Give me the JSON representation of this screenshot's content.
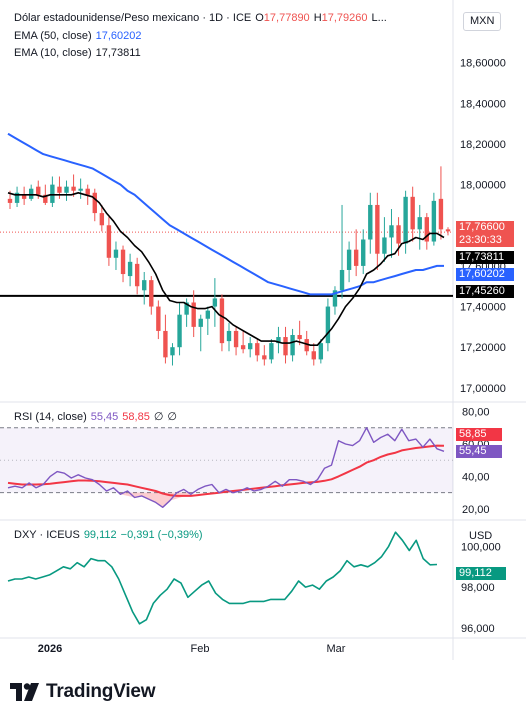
{
  "header": {
    "title": "Dólar estadounidense/Peso mexicano · 1D · ICE",
    "o_label": "O",
    "o_value": "17,77890",
    "h_label": "H",
    "h_value": "17,79260",
    "l_label": "L..."
  },
  "ema50": {
    "label": "EMA (50, close)",
    "value": "17,60202"
  },
  "ema10": {
    "label": "EMA (10, close)",
    "value": "17,73811"
  },
  "rsi_legend": {
    "label": "RSI (14, close)",
    "v1": "55,45",
    "v2": "58,85",
    "v3": "∅",
    "v4": "∅"
  },
  "dxy_legend": {
    "label": "DXY · ICEUS",
    "value": "99,112",
    "change": "−0,391 (−0,39%)"
  },
  "currency": "MXN",
  "usd": "USD",
  "price_tags": {
    "last": "17,76600",
    "countdown": "23:30:33",
    "ema10": "17,73811",
    "ema50": "17,60202",
    "hline": "17,45260",
    "rsi_a": "58,85",
    "rsi_b": "55,45",
    "dxy": "99,112"
  },
  "brand": "TradingView",
  "colors": {
    "up": "#26a69a",
    "down": "#ef5350",
    "ema50": "#2962ff",
    "ema10": "#000000",
    "rsi": "#7e57c2",
    "rsi_ma": "#f23645",
    "dxy": "#089981",
    "hline": "#000000"
  },
  "chart_data": [
    {
      "type": "candlestick",
      "title": "Dólar estadounidense/Peso mexicano · 1D · ICE",
      "ylabel": "MXN",
      "ylim": [
        16.95,
        18.82
      ],
      "yticks": [
        "17,00000",
        "17,20000",
        "17,40000",
        "17,60000",
        "17,80000",
        "18,00000",
        "18,20000",
        "18,40000",
        "18,60000"
      ],
      "x_ticks": [
        "2026",
        "Feb",
        "Mar"
      ],
      "ohlc": [
        [
          17.93,
          17.97,
          17.88,
          17.91
        ],
        [
          17.91,
          17.99,
          17.89,
          17.96
        ],
        [
          17.95,
          17.99,
          17.9,
          17.93
        ],
        [
          17.93,
          18.0,
          17.92,
          17.98
        ],
        [
          17.99,
          18.02,
          17.93,
          17.95
        ],
        [
          17.95,
          18.0,
          17.9,
          17.91
        ],
        [
          17.91,
          18.04,
          17.89,
          18.0
        ],
        [
          17.99,
          18.04,
          17.93,
          17.96
        ],
        [
          17.96,
          18.02,
          17.92,
          17.99
        ],
        [
          17.99,
          18.05,
          17.94,
          17.97
        ],
        [
          17.97,
          18.03,
          17.93,
          17.98
        ],
        [
          17.98,
          18.0,
          17.9,
          17.95
        ],
        [
          17.96,
          17.98,
          17.82,
          17.86
        ],
        [
          17.86,
          17.9,
          17.77,
          17.8
        ],
        [
          17.8,
          17.84,
          17.6,
          17.64
        ],
        [
          17.64,
          17.72,
          17.58,
          17.68
        ],
        [
          17.68,
          17.7,
          17.52,
          17.56
        ],
        [
          17.55,
          17.66,
          17.5,
          17.62
        ],
        [
          17.61,
          17.64,
          17.46,
          17.5
        ],
        [
          17.48,
          17.57,
          17.41,
          17.53
        ],
        [
          17.53,
          17.55,
          17.36,
          17.4
        ],
        [
          17.4,
          17.43,
          17.24,
          17.28
        ],
        [
          17.28,
          17.36,
          17.12,
          17.15
        ],
        [
          17.16,
          17.22,
          17.11,
          17.2
        ],
        [
          17.2,
          17.42,
          17.16,
          17.36
        ],
        [
          17.36,
          17.44,
          17.3,
          17.42
        ],
        [
          17.42,
          17.48,
          17.25,
          17.3
        ],
        [
          17.3,
          17.36,
          17.18,
          17.34
        ],
        [
          17.34,
          17.4,
          17.26,
          17.38
        ],
        [
          17.4,
          17.54,
          17.3,
          17.44
        ],
        [
          17.44,
          17.46,
          17.18,
          17.22
        ],
        [
          17.23,
          17.32,
          17.18,
          17.28
        ],
        [
          17.28,
          17.3,
          17.16,
          17.2
        ],
        [
          17.21,
          17.28,
          17.17,
          17.19
        ],
        [
          17.19,
          17.25,
          17.15,
          17.22
        ],
        [
          17.22,
          17.24,
          17.13,
          17.16
        ],
        [
          17.16,
          17.21,
          17.11,
          17.14
        ],
        [
          17.14,
          17.24,
          17.12,
          17.22
        ],
        [
          17.22,
          17.3,
          17.17,
          17.25
        ],
        [
          17.25,
          17.3,
          17.12,
          17.16
        ],
        [
          17.16,
          17.29,
          17.13,
          17.26
        ],
        [
          17.26,
          17.33,
          17.21,
          17.24
        ],
        [
          17.24,
          17.28,
          17.16,
          17.18
        ],
        [
          17.18,
          17.22,
          17.11,
          17.14
        ],
        [
          17.14,
          17.24,
          17.12,
          17.22
        ],
        [
          17.22,
          17.44,
          17.18,
          17.4
        ],
        [
          17.4,
          17.5,
          17.36,
          17.48
        ],
        [
          17.48,
          17.9,
          17.44,
          17.58
        ],
        [
          17.58,
          17.72,
          17.52,
          17.68
        ],
        [
          17.68,
          17.78,
          17.55,
          17.6
        ],
        [
          17.6,
          17.78,
          17.56,
          17.73
        ],
        [
          17.73,
          17.96,
          17.66,
          17.9
        ],
        [
          17.9,
          17.96,
          17.58,
          17.66
        ],
        [
          17.66,
          17.84,
          17.62,
          17.74
        ],
        [
          17.74,
          17.88,
          17.64,
          17.8
        ],
        [
          17.8,
          17.84,
          17.65,
          17.71
        ],
        [
          17.71,
          17.97,
          17.66,
          17.94
        ],
        [
          17.94,
          17.99,
          17.72,
          17.78
        ],
        [
          17.78,
          17.9,
          17.68,
          17.84
        ],
        [
          17.84,
          17.86,
          17.68,
          17.72
        ],
        [
          17.72,
          17.96,
          17.7,
          17.92
        ],
        [
          17.93,
          18.09,
          17.73,
          17.78
        ],
        [
          17.78,
          17.79,
          17.75,
          17.77
        ]
      ],
      "ema10": [
        17.96,
        17.95,
        17.95,
        17.95,
        17.95,
        17.94,
        17.95,
        17.95,
        17.95,
        17.95,
        17.96,
        17.95,
        17.94,
        17.91,
        17.86,
        17.82,
        17.77,
        17.74,
        17.7,
        17.67,
        17.62,
        17.56,
        17.48,
        17.43,
        17.42,
        17.42,
        17.4,
        17.39,
        17.39,
        17.4,
        17.36,
        17.34,
        17.31,
        17.29,
        17.27,
        17.25,
        17.23,
        17.23,
        17.23,
        17.22,
        17.22,
        17.23,
        17.22,
        17.21,
        17.21,
        17.25,
        17.29,
        17.34,
        17.4,
        17.44,
        17.49,
        17.56,
        17.58,
        17.61,
        17.65,
        17.66,
        17.71,
        17.72,
        17.74,
        17.73,
        17.76,
        17.76,
        17.74
      ],
      "ema50": [
        18.25,
        18.23,
        18.21,
        18.19,
        18.17,
        18.15,
        18.14,
        18.13,
        18.12,
        18.11,
        18.1,
        18.09,
        18.08,
        18.06,
        18.04,
        18.02,
        18.0,
        17.97,
        17.95,
        17.92,
        17.89,
        17.86,
        17.83,
        17.8,
        17.78,
        17.76,
        17.74,
        17.72,
        17.7,
        17.68,
        17.66,
        17.64,
        17.62,
        17.6,
        17.58,
        17.56,
        17.54,
        17.52,
        17.51,
        17.5,
        17.49,
        17.48,
        17.47,
        17.46,
        17.46,
        17.46,
        17.46,
        17.47,
        17.48,
        17.49,
        17.5,
        17.52,
        17.52,
        17.53,
        17.54,
        17.55,
        17.56,
        17.57,
        17.58,
        17.58,
        17.59,
        17.6,
        17.6
      ],
      "hline": 17.4526,
      "last": 17.766
    },
    {
      "type": "line",
      "title": "RSI (14, close)",
      "ylim": [
        15,
        84
      ],
      "yticks": [
        "20,00",
        "40,00",
        "60,00",
        "80,00"
      ],
      "bands": [
        30,
        70
      ],
      "series": [
        {
          "name": "RSI",
          "values": [
            33,
            34,
            33,
            36,
            33,
            35,
            40,
            43,
            42,
            39,
            41,
            39,
            38,
            35,
            31,
            33,
            29,
            31,
            27,
            28,
            26,
            24,
            21,
            25,
            30,
            32,
            29,
            32,
            34,
            35,
            30,
            32,
            30,
            31,
            33,
            31,
            32,
            34,
            37,
            34,
            38,
            38,
            37,
            35,
            38,
            45,
            47,
            62,
            60,
            59,
            62,
            70,
            61,
            64,
            66,
            62,
            69,
            62,
            63,
            58,
            63,
            57,
            55.45
          ]
        },
        {
          "name": "MA",
          "values": [
            36,
            35.5,
            35,
            35,
            35,
            35.2,
            35.5,
            36,
            36.5,
            37,
            37.5,
            37.5,
            37.3,
            37,
            36.5,
            36,
            35.5,
            35,
            34,
            33,
            32,
            31,
            29.5,
            28.5,
            28,
            28,
            28,
            28.5,
            29,
            29.5,
            30,
            30.5,
            31,
            31.5,
            32,
            32.5,
            33,
            33.5,
            34,
            34.5,
            35,
            35.5,
            36,
            36.3,
            36.6,
            37.3,
            38.2,
            40,
            42,
            44,
            46,
            48.5,
            50,
            52,
            53.5,
            54.5,
            56,
            56.8,
            57.5,
            58,
            58.5,
            59,
            58.85
          ]
        }
      ]
    },
    {
      "type": "line",
      "title": "DXY · ICEUS",
      "ylabel": "USD",
      "ylim": [
        95.6,
        101.2
      ],
      "yticks": [
        "96,000",
        "98,000",
        "100,000"
      ],
      "series": [
        {
          "name": "DXY",
          "values": [
            98.3,
            98.4,
            98.4,
            98.5,
            98.4,
            98.5,
            98.6,
            98.8,
            99.0,
            98.9,
            99.2,
            99.0,
            99.4,
            99.3,
            99.3,
            99.0,
            98.4,
            97.6,
            96.8,
            96.2,
            96.4,
            97.2,
            97.6,
            97.9,
            98.4,
            98.2,
            97.5,
            97.8,
            98.1,
            98.3,
            97.7,
            97.4,
            97.2,
            97.2,
            97.2,
            97.3,
            97.3,
            97.3,
            97.4,
            97.4,
            97.4,
            97.8,
            98.3,
            98.0,
            98.1,
            97.9,
            98.3,
            98.5,
            98.8,
            99.3,
            99.0,
            99.1,
            99.0,
            99.2,
            99.5,
            100.0,
            100.7,
            100.3,
            99.8,
            100.3,
            99.4,
            99.1,
            99.112
          ]
        }
      ]
    }
  ]
}
